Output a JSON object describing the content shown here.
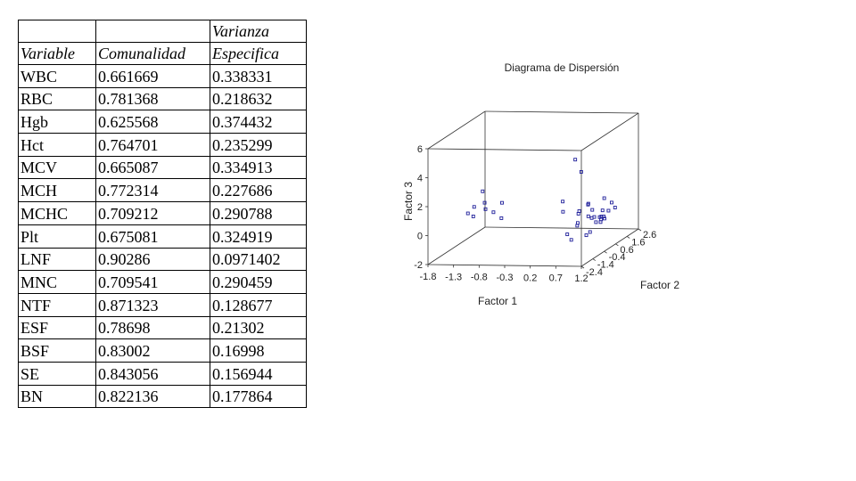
{
  "table": {
    "header_top": [
      "",
      "",
      "Varianza"
    ],
    "header": [
      "Variable",
      "Comunalidad",
      "Especifica"
    ],
    "rows": [
      [
        "WBC",
        "0.661669",
        "0.338331"
      ],
      [
        "RBC",
        "0.781368",
        "0.218632"
      ],
      [
        "Hgb",
        "0.625568",
        "0.374432"
      ],
      [
        "Hct",
        "0.764701",
        "0.235299"
      ],
      [
        "MCV",
        "0.665087",
        "0.334913"
      ],
      [
        "MCH",
        "0.772314",
        "0.227686"
      ],
      [
        "MCHC",
        "0.709212",
        "0.290788"
      ],
      [
        "Plt",
        "0.675081",
        "0.324919"
      ],
      [
        "LNF",
        "0.90286",
        "0.0971402"
      ],
      [
        "MNC",
        "0.709541",
        "0.290459"
      ],
      [
        "NTF",
        "0.871323",
        "0.128677"
      ],
      [
        "ESF",
        "0.78698",
        "0.21302"
      ],
      [
        "BSF",
        "0.83002",
        "0.16998"
      ],
      [
        "SE",
        "0.843056",
        "0.156944"
      ],
      [
        "BN",
        "0.822136",
        "0.177864"
      ]
    ]
  },
  "chart_data": {
    "type": "scatter",
    "title": "Diagrama de Dispersión",
    "xlabel": "Factor 1",
    "ylabel": "Factor 2",
    "zlabel": "Factor 3",
    "x_ticks": [
      "-1.8",
      "-1.3",
      "-0.8",
      "-0.3",
      "0.2",
      "0.7",
      "1.2"
    ],
    "y_ticks": [
      "-2.4",
      "-1.4",
      "-0.4",
      "0.6",
      "1.6",
      "2.6"
    ],
    "z_ticks": [
      "-2",
      "0",
      "2",
      "4",
      "6"
    ],
    "xlim": [
      -1.8,
      1.2
    ],
    "ylim": [
      -2.4,
      2.6
    ],
    "zlim": [
      -2,
      6
    ],
    "marker_color": "#1f1f9a",
    "points": [
      {
        "x": -1.6,
        "y": 0.2,
        "z": 0.2
      },
      {
        "x": -1.5,
        "y": 0.3,
        "z": 0.6
      },
      {
        "x": -1.45,
        "y": 0.0,
        "z": 0.1
      },
      {
        "x": -1.3,
        "y": 0.4,
        "z": 0.4
      },
      {
        "x": -1.25,
        "y": 0.1,
        "z": 1.0
      },
      {
        "x": -1.1,
        "y": 0.2,
        "z": 0.3
      },
      {
        "x": -1.2,
        "y": -0.3,
        "z": 2.0
      },
      {
        "x": -1.0,
        "y": 0.5,
        "z": 0.8
      },
      {
        "x": -0.9,
        "y": 0.0,
        "z": 0.0
      },
      {
        "x": 0.5,
        "y": 0.2,
        "z": 4.0
      },
      {
        "x": 0.55,
        "y": 0.5,
        "z": 3.0
      },
      {
        "x": 0.3,
        "y": 0.0,
        "z": 1.2
      },
      {
        "x": 0.35,
        "y": -0.2,
        "z": 0.6
      },
      {
        "x": 0.6,
        "y": 0.1,
        "z": 0.5
      },
      {
        "x": 0.65,
        "y": -0.3,
        "z": -0.3
      },
      {
        "x": 0.75,
        "y": 0.2,
        "z": 0.9
      },
      {
        "x": 0.8,
        "y": 0.0,
        "z": 0.2
      },
      {
        "x": 0.85,
        "y": 0.3,
        "z": 0.0
      },
      {
        "x": 0.9,
        "y": -0.1,
        "z": 0.7
      },
      {
        "x": 0.95,
        "y": 0.4,
        "z": -0.4
      },
      {
        "x": 1.0,
        "y": 0.1,
        "z": 0.1
      },
      {
        "x": 1.05,
        "y": 0.0,
        "z": 0.0
      },
      {
        "x": 1.1,
        "y": -0.2,
        "z": 0.3
      },
      {
        "x": 1.0,
        "y": 0.5,
        "z": 1.2
      },
      {
        "x": 0.7,
        "y": 0.6,
        "z": -1.2
      },
      {
        "x": 0.5,
        "y": -0.5,
        "z": -0.8
      },
      {
        "x": 0.4,
        "y": 0.3,
        "z": -1.6
      },
      {
        "x": 0.85,
        "y": -0.4,
        "z": -0.9
      },
      {
        "x": 1.1,
        "y": 0.7,
        "z": 0.8
      },
      {
        "x": 1.15,
        "y": 0.2,
        "z": 0.5
      },
      {
        "x": 0.9,
        "y": 0.8,
        "z": 0.2
      },
      {
        "x": 0.6,
        "y": 0.9,
        "z": 0.6
      },
      {
        "x": 1.0,
        "y": -0.6,
        "z": 0.4
      },
      {
        "x": 0.75,
        "y": -0.7,
        "z": 0.1
      },
      {
        "x": 0.45,
        "y": 0.7,
        "z": 0.0
      },
      {
        "x": 1.1,
        "y": 1.0,
        "z": 0.3
      },
      {
        "x": 0.95,
        "y": 0.0,
        "z": -0.2
      },
      {
        "x": 1.05,
        "y": 0.3,
        "z": -0.1
      },
      {
        "x": 1.08,
        "y": 0.1,
        "z": 0.15
      }
    ]
  }
}
